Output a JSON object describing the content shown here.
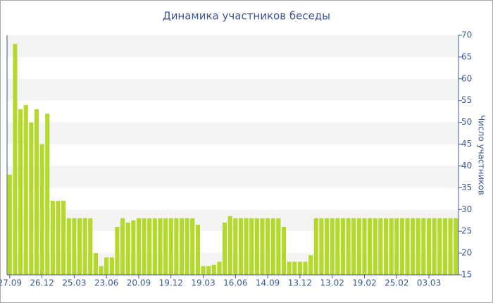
{
  "chart_data": {
    "type": "bar",
    "title": "Динамика участников беседы",
    "y_axis_label": "Число участников",
    "categories": [
      "27.09",
      null,
      null,
      null,
      null,
      null,
      "26.12",
      null,
      null,
      null,
      null,
      null,
      "25.03",
      null,
      null,
      null,
      null,
      null,
      "23.06",
      null,
      null,
      null,
      null,
      null,
      "20.09",
      null,
      null,
      null,
      null,
      null,
      "19.12",
      null,
      null,
      null,
      null,
      null,
      "19.03",
      null,
      null,
      null,
      null,
      null,
      "16.06",
      null,
      null,
      null,
      null,
      null,
      "14.09",
      null,
      null,
      null,
      null,
      null,
      "13.12",
      null,
      null,
      null,
      null,
      null,
      "13.02",
      null,
      null,
      null,
      null,
      null,
      "19.02",
      null,
      null,
      null,
      null,
      null,
      "25.02",
      null,
      null,
      null,
      null,
      null,
      "03.03",
      null,
      null,
      null,
      null,
      null
    ],
    "values": [
      38,
      68,
      53,
      54,
      50,
      53,
      45,
      52,
      32,
      32,
      32,
      28,
      28,
      28,
      28,
      28,
      20,
      17,
      19,
      19,
      26,
      28,
      27,
      27.5,
      28,
      28,
      28,
      28,
      28,
      28,
      28,
      28,
      28,
      28,
      28,
      26.5,
      17,
      17,
      17.3,
      18,
      27,
      28.5,
      28,
      28,
      28,
      28,
      28,
      28,
      28,
      28,
      28,
      26,
      18,
      18,
      18,
      18,
      19.5,
      28,
      28,
      28,
      28,
      28,
      28,
      28,
      28,
      28,
      28,
      28,
      28,
      28,
      28,
      28,
      28,
      28,
      28,
      28,
      28,
      28,
      28,
      28,
      28,
      28,
      28,
      28
    ],
    "color": "#b5d92a",
    "ylim": [
      15,
      70
    ],
    "yticks": [
      15,
      20,
      25,
      30,
      35,
      40,
      45,
      50,
      55,
      60,
      65,
      70
    ],
    "y_axis_side": "right",
    "grid": "bands"
  }
}
